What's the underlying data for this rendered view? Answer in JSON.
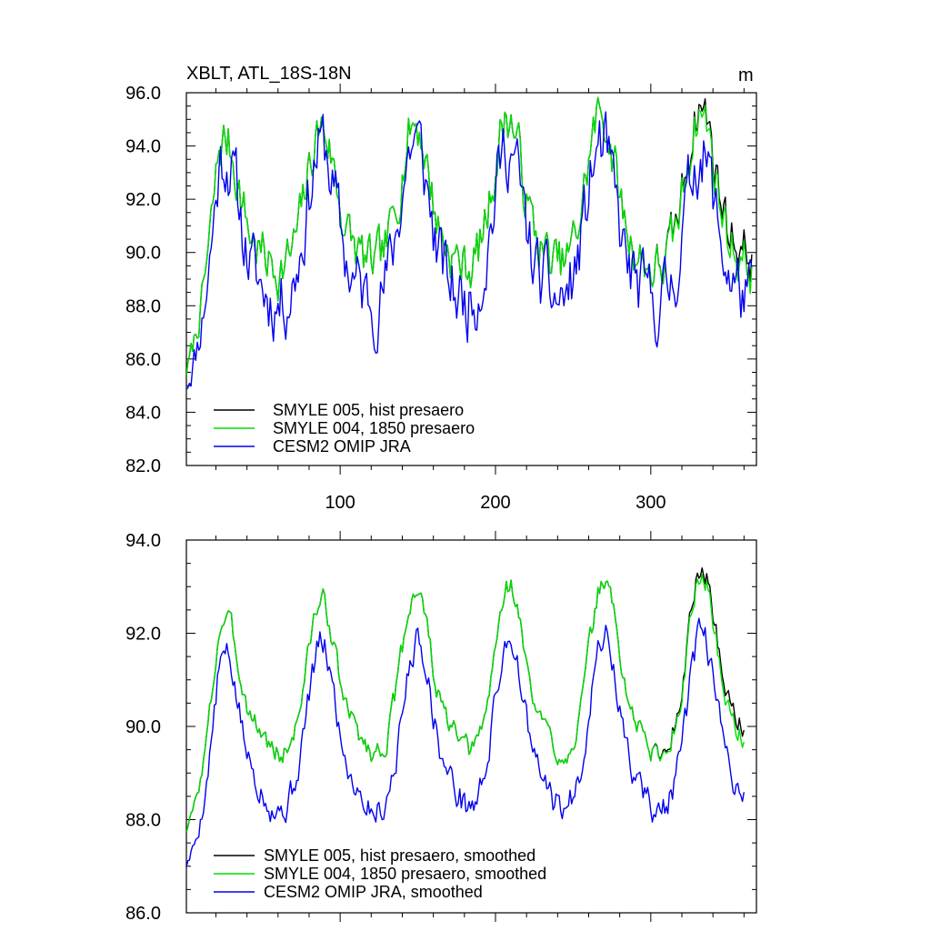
{
  "chart_data": [
    {
      "type": "line",
      "title": "XBLT, ATL_18S-18N",
      "units": "m",
      "xlim": [
        1,
        368
      ],
      "ylim": [
        82,
        96
      ],
      "xticks": [
        100,
        200,
        300
      ],
      "xtick_labels": [
        "100",
        "200",
        "300"
      ],
      "yticks": [
        82,
        84,
        86,
        88,
        90,
        92,
        94,
        96
      ],
      "ytick_labels": [
        "82.0",
        "84.0",
        "86.0",
        "88.0",
        "90.0",
        "92.0",
        "94.0",
        "96.0"
      ],
      "legend_position": "bottom-left",
      "series": [
        {
          "name": "SMYLE 005, hist presaero",
          "color": "#000000",
          "generator": {
            "n": 365,
            "peak_days": [
              26,
              88,
              148,
              208,
              268,
              332
            ],
            "peaks": [
              94.2,
              94.7,
              94.9,
              95.1,
              95.2,
              95.3
            ],
            "base": 89.3,
            "start": 83.4,
            "noise": 0.85,
            "end_trend": 0.45,
            "seed": 7
          }
        },
        {
          "name": "SMYLE 004, 1850 presaero",
          "color": "#00dd00",
          "generator": {
            "n": 365,
            "peak_days": [
              26,
              88,
              148,
              208,
              268,
              332
            ],
            "peaks": [
              94.2,
              94.7,
              94.9,
              95.1,
              95.2,
              95.3
            ],
            "base": 89.3,
            "start": 83.4,
            "noise": 0.85,
            "end_trend": 0.0,
            "seed": 7
          }
        },
        {
          "name": "CESM2 OMIP JRA",
          "color": "#0000ee",
          "generator": {
            "n": 365,
            "peak_days": [
              26,
              88,
              148,
              208,
              268,
              332
            ],
            "peaks": [
              93.6,
              94.0,
              94.2,
              94.0,
              94.0,
              93.8
            ],
            "base": 88.0,
            "start": 83.4,
            "noise": 1.15,
            "end_trend": 0.0,
            "seed": 11
          }
        }
      ]
    },
    {
      "type": "line",
      "xlim": [
        1,
        368
      ],
      "ylim": [
        86,
        94
      ],
      "xticks": [
        100,
        200,
        300
      ],
      "xtick_labels": [],
      "yticks": [
        86,
        88,
        90,
        92,
        94
      ],
      "ytick_labels": [
        "86.0",
        "88.0",
        "90.0",
        "92.0",
        "94.0"
      ],
      "legend_position": "bottom-left",
      "series": [
        {
          "name": "SMYLE 005, hist presaero, smoothed",
          "color": "#000000",
          "generator": {
            "n": 360,
            "peak_days": [
              26,
              88,
              149,
              209,
              270,
              333
            ],
            "peaks": [
              92.3,
              92.7,
              92.95,
              93.05,
              93.15,
              93.25
            ],
            "base": 89.3,
            "start": 86.9,
            "noise": 0.22,
            "end_trend": 0.25,
            "seed": 3
          }
        },
        {
          "name": "SMYLE 004, 1850 presaero, smoothed",
          "color": "#00dd00",
          "generator": {
            "n": 360,
            "peak_days": [
              26,
              88,
              149,
              209,
              270,
              333
            ],
            "peaks": [
              92.3,
              92.7,
              92.95,
              93.05,
              93.15,
              93.25
            ],
            "base": 89.3,
            "start": 86.9,
            "noise": 0.22,
            "end_trend": 0.0,
            "seed": 3
          }
        },
        {
          "name": "CESM2 OMIP JRA, smoothed",
          "color": "#0000ee",
          "generator": {
            "n": 360,
            "peak_days": [
              26,
              88,
              150,
              209,
              270,
              333
            ],
            "peaks": [
              91.5,
              91.75,
              91.85,
              91.9,
              91.95,
              91.95
            ],
            "base": 88.1,
            "start": 86.4,
            "noise": 0.28,
            "end_trend": 0.0,
            "seed": 5
          }
        }
      ]
    }
  ]
}
